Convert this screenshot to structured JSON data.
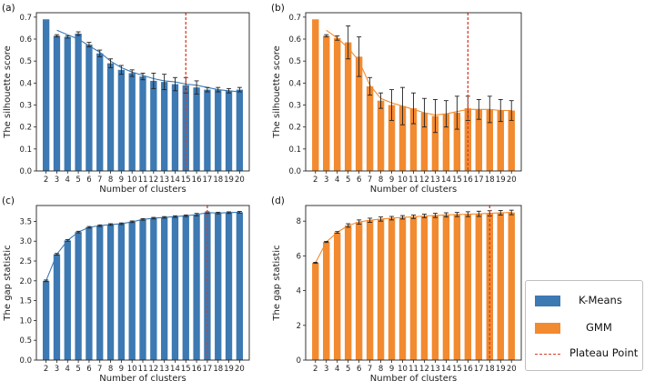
{
  "colors": {
    "kmeans": "#3d79b2",
    "gmm": "#f28a30",
    "plateau": "#d6402b",
    "errorbar": "#222222"
  },
  "legend": {
    "kmeans_label": "K-Means",
    "gmm_label": "GMM",
    "plateau_label": "Plateau Point"
  },
  "chart_data": [
    {
      "type": "bar",
      "panel": "(a)",
      "method": "kmeans",
      "xlabel": "Number of clusters",
      "ylabel": "The silhouette score",
      "ylim": [
        0,
        0.72
      ],
      "yticks": [
        "0.0",
        "0.1",
        "0.2",
        "0.3",
        "0.4",
        "0.5",
        "0.6",
        "0.7"
      ],
      "ytick_values": [
        0,
        0.1,
        0.2,
        0.3,
        0.4,
        0.5,
        0.6,
        0.7
      ],
      "categories": [
        "2",
        "3",
        "4",
        "5",
        "6",
        "7",
        "8",
        "9",
        "10",
        "11",
        "12",
        "13",
        "14",
        "15",
        "16",
        "17",
        "18",
        "19",
        "20"
      ],
      "values": [
        0.69,
        0.615,
        0.61,
        0.625,
        0.575,
        0.535,
        0.49,
        0.46,
        0.445,
        0.43,
        0.41,
        0.405,
        0.395,
        0.39,
        0.38,
        0.37,
        0.37,
        0.365,
        0.37
      ],
      "errors": [
        0,
        0.005,
        0.005,
        0.008,
        0.01,
        0.015,
        0.02,
        0.02,
        0.015,
        0.015,
        0.035,
        0.035,
        0.03,
        0.035,
        0.03,
        0.01,
        0.01,
        0.01,
        0.01
      ],
      "trend": [
        null,
        0.64,
        0.62,
        0.6,
        0.57,
        0.54,
        0.5,
        0.47,
        0.45,
        0.435,
        0.42,
        0.41,
        0.405,
        0.395,
        0.39,
        0.38,
        0.37,
        0.365,
        0.36
      ],
      "plateau": "15"
    },
    {
      "type": "bar",
      "panel": "(b)",
      "method": "gmm",
      "xlabel": "Number of clusters",
      "ylabel": "The silhouette score",
      "ylim": [
        0,
        0.72
      ],
      "yticks": [
        "0.0",
        "0.1",
        "0.2",
        "0.3",
        "0.4",
        "0.5",
        "0.6",
        "0.7"
      ],
      "ytick_values": [
        0,
        0.1,
        0.2,
        0.3,
        0.4,
        0.5,
        0.6,
        0.7
      ],
      "categories": [
        "2",
        "3",
        "4",
        "5",
        "6",
        "7",
        "8",
        "9",
        "10",
        "11",
        "12",
        "13",
        "14",
        "15",
        "16",
        "17",
        "18",
        "19",
        "20"
      ],
      "values": [
        0.69,
        0.615,
        0.605,
        0.585,
        0.52,
        0.385,
        0.32,
        0.3,
        0.295,
        0.285,
        0.265,
        0.25,
        0.26,
        0.265,
        0.285,
        0.28,
        0.28,
        0.275,
        0.275
      ],
      "errors": [
        0,
        0.005,
        0.01,
        0.075,
        0.09,
        0.04,
        0.035,
        0.07,
        0.085,
        0.07,
        0.065,
        0.075,
        0.06,
        0.075,
        0.055,
        0.045,
        0.06,
        0.05,
        0.045
      ],
      "trend": [
        null,
        0.64,
        0.605,
        0.56,
        0.5,
        0.39,
        0.33,
        0.31,
        0.295,
        0.28,
        0.265,
        0.255,
        0.26,
        0.27,
        0.28,
        0.28,
        0.28,
        0.275,
        0.275
      ],
      "plateau": "16"
    },
    {
      "type": "bar",
      "panel": "(c)",
      "method": "kmeans",
      "xlabel": "Number of clusters",
      "ylabel": "The gap statistic",
      "ylim": [
        0,
        3.9
      ],
      "yticks": [
        "0.0",
        "0.5",
        "1.0",
        "1.5",
        "2.0",
        "2.5",
        "3.0",
        "3.5"
      ],
      "ytick_values": [
        0,
        0.5,
        1.0,
        1.5,
        2.0,
        2.5,
        3.0,
        3.5
      ],
      "categories": [
        "2",
        "3",
        "4",
        "5",
        "6",
        "7",
        "8",
        "9",
        "10",
        "11",
        "12",
        "13",
        "14",
        "15",
        "16",
        "17",
        "18",
        "19",
        "20"
      ],
      "values": [
        2.0,
        2.67,
        3.02,
        3.23,
        3.35,
        3.39,
        3.42,
        3.44,
        3.49,
        3.55,
        3.58,
        3.6,
        3.62,
        3.64,
        3.67,
        3.72,
        3.71,
        3.72,
        3.73
      ],
      "errors": [
        0.02,
        0.02,
        0.02,
        0.02,
        0.02,
        0.02,
        0.02,
        0.02,
        0.02,
        0.02,
        0.02,
        0.02,
        0.02,
        0.02,
        0.03,
        0.02,
        0.02,
        0.02,
        0.02
      ],
      "trend": [
        2.0,
        2.67,
        3.02,
        3.23,
        3.35,
        3.39,
        3.42,
        3.44,
        3.49,
        3.55,
        3.58,
        3.6,
        3.62,
        3.64,
        3.67,
        3.72,
        3.71,
        3.72,
        3.73
      ],
      "plateau": "17"
    },
    {
      "type": "bar",
      "panel": "(d)",
      "method": "gmm",
      "xlabel": "Number of clusters",
      "ylabel": "The gap statistic",
      "ylim": [
        0,
        8.9
      ],
      "yticks": [
        "0",
        "2",
        "4",
        "6",
        "8"
      ],
      "ytick_values": [
        0,
        2,
        4,
        6,
        8
      ],
      "categories": [
        "2",
        "3",
        "4",
        "5",
        "6",
        "7",
        "8",
        "9",
        "10",
        "11",
        "12",
        "13",
        "14",
        "15",
        "16",
        "17",
        "18",
        "19",
        "20"
      ],
      "values": [
        5.6,
        6.8,
        7.35,
        7.75,
        7.95,
        8.05,
        8.12,
        8.17,
        8.22,
        8.25,
        8.3,
        8.33,
        8.36,
        8.38,
        8.4,
        8.42,
        8.45,
        8.48,
        8.5
      ],
      "errors": [
        0.03,
        0.03,
        0.05,
        0.1,
        0.12,
        0.12,
        0.12,
        0.1,
        0.1,
        0.1,
        0.1,
        0.12,
        0.12,
        0.12,
        0.14,
        0.15,
        0.15,
        0.13,
        0.13
      ],
      "trend": [
        5.6,
        6.8,
        7.35,
        7.75,
        7.95,
        8.05,
        8.12,
        8.17,
        8.22,
        8.25,
        8.3,
        8.33,
        8.36,
        8.38,
        8.4,
        8.42,
        8.45,
        8.48,
        8.5
      ],
      "plateau": "18"
    }
  ]
}
